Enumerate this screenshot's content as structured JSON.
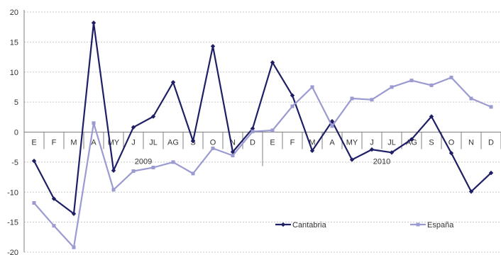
{
  "chart_data": {
    "type": "line",
    "title": "",
    "xlabel": "",
    "ylabel": "",
    "ylim": [
      -20,
      20
    ],
    "yticks": [
      20,
      15,
      10,
      5,
      0,
      -5,
      -10,
      -15,
      -20
    ],
    "grid": true,
    "legend_position": "bottom-right",
    "categories": [
      "E",
      "F",
      "M",
      "A",
      "MY",
      "J",
      "JL",
      "AG",
      "S",
      "O",
      "N",
      "D",
      "E",
      "F",
      "M",
      "A",
      "MY",
      "J",
      "JL",
      "AG",
      "S",
      "O",
      "N",
      "D"
    ],
    "year_labels": [
      "2009",
      "2010"
    ],
    "series": [
      {
        "name": "Cantabria",
        "color": "#1f1f66",
        "values": [
          -4.8,
          -11.1,
          -13.6,
          18.2,
          -6.4,
          0.8,
          2.6,
          8.3,
          -1.5,
          14.3,
          -3.3,
          0.6,
          11.6,
          6.1,
          -3.1,
          1.8,
          -4.6,
          -2.9,
          -3.4,
          -1.2,
          2.6,
          -3.5,
          -9.9,
          -6.8
        ]
      },
      {
        "name": "España",
        "color": "#9b9ad1",
        "values": [
          -11.8,
          -15.6,
          -19.2,
          1.5,
          -9.6,
          -6.5,
          -5.9,
          -5.0,
          -6.9,
          -2.7,
          -3.9,
          0.1,
          0.3,
          4.3,
          7.5,
          1.0,
          5.6,
          5.4,
          7.5,
          8.6,
          7.8,
          9.1,
          5.6,
          4.2
        ]
      }
    ]
  }
}
